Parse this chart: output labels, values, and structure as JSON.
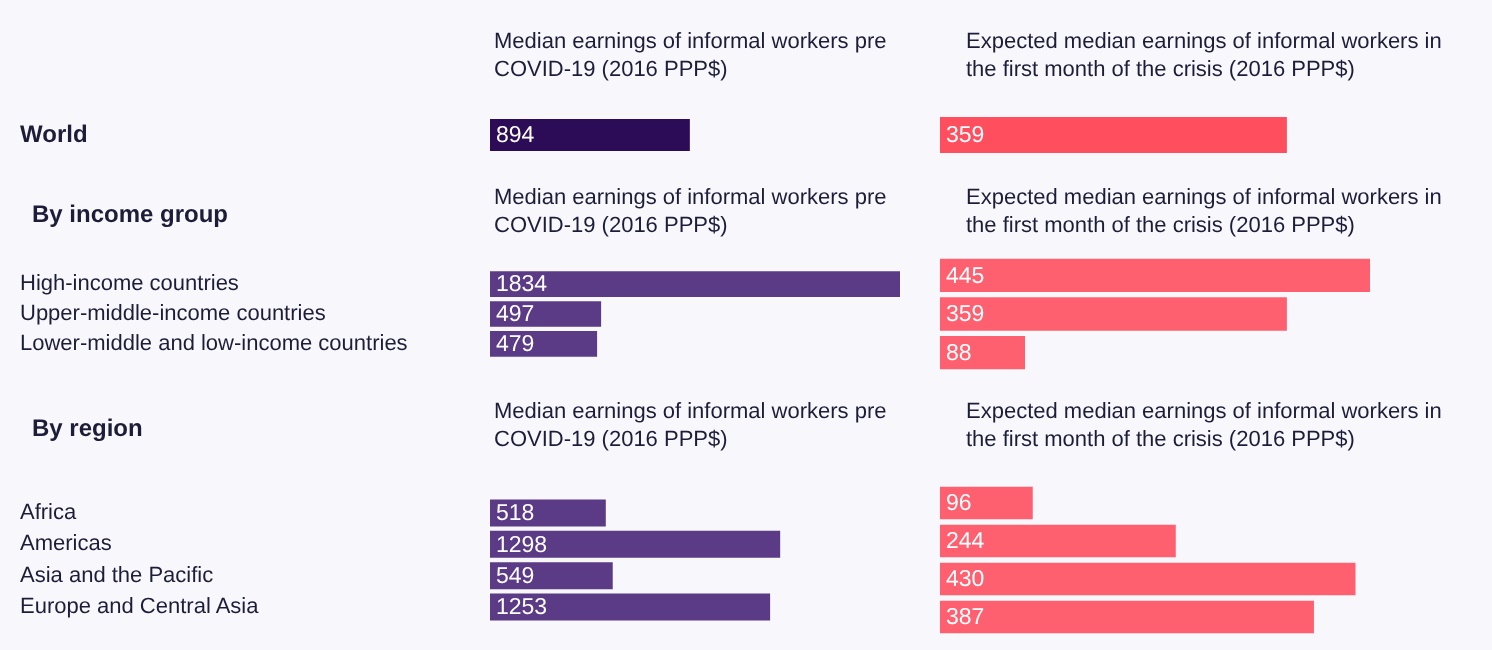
{
  "chart_data": [
    {
      "type": "bar",
      "orientation": "horizontal",
      "subtitle": "Median earnings of informal workers pre COVID-19 (2016 PPP$)",
      "categories": [
        "World"
      ],
      "values": [
        894
      ],
      "color": "#2d0c57",
      "data_labels": true,
      "tick_labels": "y",
      "legend": false
    },
    {
      "type": "bar",
      "orientation": "horizontal",
      "subtitle": "Expected median earnings of informal workers in the first month of the crisis (2016 PPP$)",
      "categories": [
        null
      ],
      "values": [
        359
      ],
      "color": "#ff4f5f",
      "data_labels": true,
      "tick_labels": false,
      "legend": false
    },
    {
      "type": "bar",
      "orientation": "horizontal",
      "title": "By income group",
      "subtitle": "Median earnings of informal workers pre COVID-19 (2016 PPP$)",
      "categories": [
        "High-income countries",
        "Upper-middle-income countries",
        "Lower-middle and low-income countries"
      ],
      "values": [
        1834,
        497,
        479
      ],
      "color": "#5b3a86",
      "data_labels": true,
      "tick_labels": "y",
      "legend": false
    },
    {
      "type": "bar",
      "orientation": "horizontal",
      "subtitle": "Expected median earnings of informal workers in the first month of the crisis (2016 PPP$)",
      "categories": [
        null,
        null,
        null
      ],
      "values": [
        445,
        359,
        88
      ],
      "color": "#ff6070",
      "data_labels": true,
      "tick_labels": false,
      "legend": false
    },
    {
      "type": "bar",
      "orientation": "horizontal",
      "title": "By region",
      "subtitle": "Median earnings of informal workers pre COVID-19 (2016 PPP$)",
      "categories": [
        "Africa",
        "Americas",
        "Asia and the Pacific",
        "Europe and Central Asia"
      ],
      "values": [
        518,
        1298,
        549,
        1253
      ],
      "color": "#5b3a86",
      "data_labels": true,
      "tick_labels": "y",
      "legend": false
    },
    {
      "type": "bar",
      "orientation": "horizontal",
      "subtitle": "Expected median earnings of informal workers in the first month of the crisis (2016 PPP$)",
      "categories": [
        null,
        null,
        null,
        null
      ],
      "values": [
        96,
        244,
        430,
        387
      ],
      "color": "#ff6070",
      "data_labels": true,
      "tick_labels": false,
      "legend": false
    }
  ]
}
